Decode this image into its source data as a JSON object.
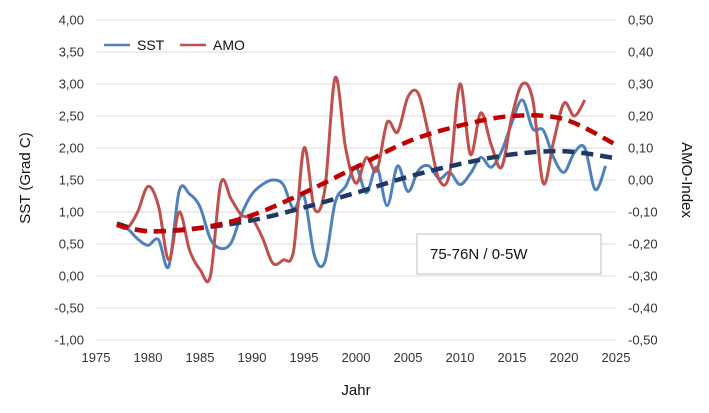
{
  "chart_data": {
    "type": "line",
    "xlabel": "Jahr",
    "ylabel_left": "SST (Grad C)",
    "ylabel_right": "AMO-Index",
    "xlim": [
      1975,
      2025
    ],
    "ylim_left": [
      -1.0,
      4.0
    ],
    "ylim_right": [
      -0.5,
      0.5
    ],
    "x_ticks": [
      "1975",
      "1980",
      "1985",
      "1990",
      "1995",
      "2000",
      "2005",
      "2010",
      "2015",
      "2020",
      "2025"
    ],
    "y_left_ticks": [
      "4,00",
      "3,50",
      "3,00",
      "2,50",
      "2,00",
      "1,50",
      "1,00",
      "0,50",
      "0,00",
      "-0,50",
      "-1,00"
    ],
    "y_right_ticks": [
      "0,50",
      "0,40",
      "0,30",
      "0,20",
      "0,10",
      "0,00",
      "-0,10",
      "-0,20",
      "-0,30",
      "-0,40",
      "-0,50"
    ],
    "grid": true,
    "legend": {
      "position": "top-left",
      "entries": [
        "SST",
        "AMO"
      ]
    },
    "annotation": "75-76N / 0-5W",
    "colors": {
      "sst": "#4f81bd",
      "amo": "#c0504d",
      "sst_trend": "#1f3864",
      "amo_trend": "#c00000",
      "grid": "#d9d9d9"
    },
    "series": [
      {
        "name": "SST",
        "axis": "left",
        "x": [
          1977,
          1978,
          1979,
          1980,
          1981,
          1982,
          1983,
          1984,
          1985,
          1986,
          1987,
          1988,
          1989,
          1990,
          1991,
          1992,
          1993,
          1994,
          1995,
          1996,
          1997,
          1998,
          1999,
          2000,
          2001,
          2002,
          2003,
          2004,
          2005,
          2006,
          2007,
          2008,
          2009,
          2010,
          2011,
          2012,
          2013,
          2014,
          2015,
          2016,
          2017,
          2018,
          2019,
          2020,
          2021,
          2022,
          2023,
          2024
        ],
        "values": [
          0.78,
          0.74,
          0.58,
          0.48,
          0.57,
          0.15,
          1.33,
          1.28,
          1.08,
          0.58,
          0.43,
          0.52,
          0.97,
          1.28,
          1.43,
          1.5,
          1.43,
          1.05,
          1.25,
          0.32,
          0.22,
          1.15,
          1.4,
          1.7,
          1.3,
          1.7,
          1.1,
          1.72,
          1.32,
          1.65,
          1.72,
          1.52,
          1.62,
          1.43,
          1.6,
          1.85,
          1.7,
          1.95,
          2.4,
          2.75,
          2.3,
          2.28,
          1.85,
          1.62,
          1.93,
          2.0,
          1.35,
          1.72
        ]
      },
      {
        "name": "AMO",
        "axis": "right",
        "x": [
          1977,
          1978,
          1979,
          1980,
          1981,
          1982,
          1983,
          1984,
          1985,
          1986,
          1987,
          1988,
          1989,
          1990,
          1991,
          1992,
          1993,
          1994,
          1995,
          1996,
          1997,
          1998,
          1999,
          2000,
          2001,
          2002,
          2003,
          2004,
          2005,
          2006,
          2007,
          2008,
          2009,
          2010,
          2011,
          2012,
          2013,
          2014,
          2015,
          2016,
          2017,
          2018,
          2019,
          2020,
          2021,
          2022
        ],
        "values": [
          -0.14,
          -0.15,
          -0.1,
          -0.02,
          -0.08,
          -0.25,
          -0.1,
          -0.22,
          -0.28,
          -0.3,
          -0.01,
          -0.06,
          -0.11,
          -0.12,
          -0.18,
          -0.26,
          -0.25,
          -0.22,
          0.1,
          -0.09,
          -0.03,
          0.32,
          0.1,
          -0.01,
          0.07,
          0.03,
          0.18,
          0.15,
          0.26,
          0.27,
          0.14,
          0.0,
          0.02,
          0.3,
          0.08,
          0.21,
          0.11,
          0.04,
          0.2,
          0.3,
          0.25,
          -0.01,
          0.12,
          0.24,
          0.2,
          0.25
        ]
      },
      {
        "name": "SST trend",
        "axis": "left",
        "style": "dashed",
        "x": [
          1977,
          1980,
          1985,
          1990,
          1995,
          2000,
          2005,
          2010,
          2015,
          2020,
          2025
        ],
        "values": [
          0.82,
          0.7,
          0.75,
          0.87,
          1.07,
          1.3,
          1.55,
          1.75,
          1.9,
          1.95,
          1.84
        ]
      },
      {
        "name": "AMO trend",
        "axis": "right",
        "style": "dashed",
        "x": [
          1977,
          1980,
          1985,
          1990,
          1995,
          2000,
          2005,
          2010,
          2015,
          2020,
          2025
        ],
        "values": [
          -0.14,
          -0.16,
          -0.15,
          -0.11,
          -0.04,
          0.04,
          0.12,
          0.17,
          0.2,
          0.19,
          0.11
        ]
      }
    ]
  }
}
